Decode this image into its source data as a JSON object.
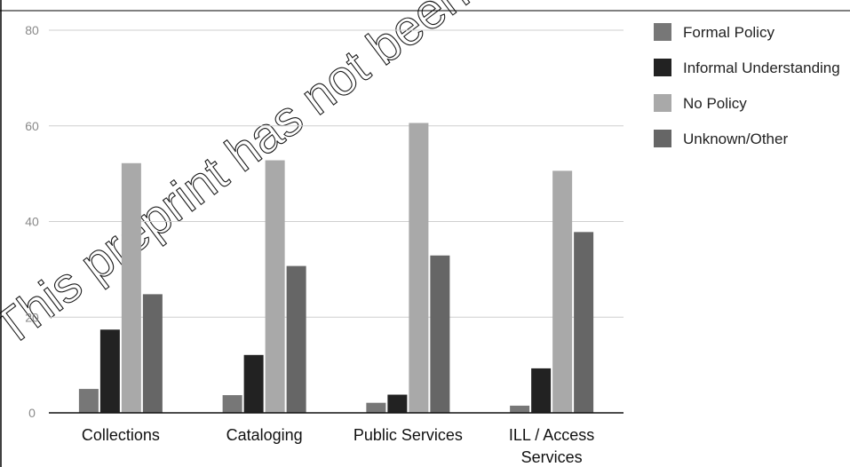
{
  "watermark": "This preprint has not been peer reviewed, copy",
  "chart_data": {
    "type": "bar",
    "title": "",
    "xlabel": "",
    "ylabel": "",
    "ylim": [
      0,
      80
    ],
    "yticks": [
      0,
      20,
      40,
      60,
      80
    ],
    "grid": true,
    "legend_position": "right",
    "categories": [
      [
        "Collections"
      ],
      [
        "Cataloging"
      ],
      [
        "Public Services"
      ],
      [
        "ILL / Access",
        "Services"
      ]
    ],
    "series": [
      {
        "name": "Formal Policy",
        "color": "#777777",
        "values": [
          5,
          3.7,
          2.1,
          1.5
        ]
      },
      {
        "name": "Informal Understanding",
        "color": "#222222",
        "values": [
          17.4,
          12.1,
          3.8,
          9.3
        ]
      },
      {
        "name": "No Policy",
        "color": "#a9a9a9",
        "values": [
          52.2,
          52.8,
          60.6,
          50.6
        ]
      },
      {
        "name": "Unknown/Other",
        "color": "#666666",
        "values": [
          24.8,
          30.7,
          32.9,
          37.8
        ]
      }
    ]
  }
}
